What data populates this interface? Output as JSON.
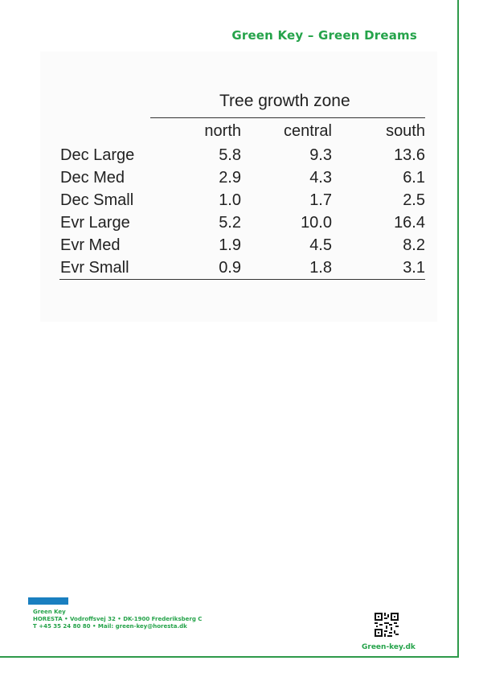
{
  "header": {
    "title": "Green Key – Green Dreams"
  },
  "table": {
    "caption": "Tree growth zone",
    "columns": [
      "north",
      "central",
      "south"
    ],
    "rows": [
      {
        "label": "Dec Large",
        "values": [
          "5.8",
          "9.3",
          "13.6"
        ]
      },
      {
        "label": "Dec Med",
        "values": [
          "2.9",
          "4.3",
          "6.1"
        ]
      },
      {
        "label": "Dec Small",
        "values": [
          "1.0",
          "1.7",
          "2.5"
        ]
      },
      {
        "label": "Evr Large",
        "values": [
          "5.2",
          "10.0",
          "16.4"
        ]
      },
      {
        "label": "Evr Med",
        "values": [
          "1.9",
          "4.5",
          "8.2"
        ]
      },
      {
        "label": "Evr Small",
        "values": [
          "0.9",
          "1.8",
          "3.1"
        ]
      }
    ]
  },
  "footer": {
    "org_name": "Green Key",
    "address_line": "HORESTA • Vodroffsvej 32 • DK-1900 Frederiksberg C",
    "contact_line": "T +45 35 24 80 80 • Mail: green-key@horesta.dk",
    "website": "Green-key.dk"
  },
  "colors": {
    "brand_green": "#25a34a",
    "footer_blue": "#1a7fc0",
    "border_green": "#2e9a4a"
  },
  "icons": {
    "qr": "qr-code-icon"
  }
}
